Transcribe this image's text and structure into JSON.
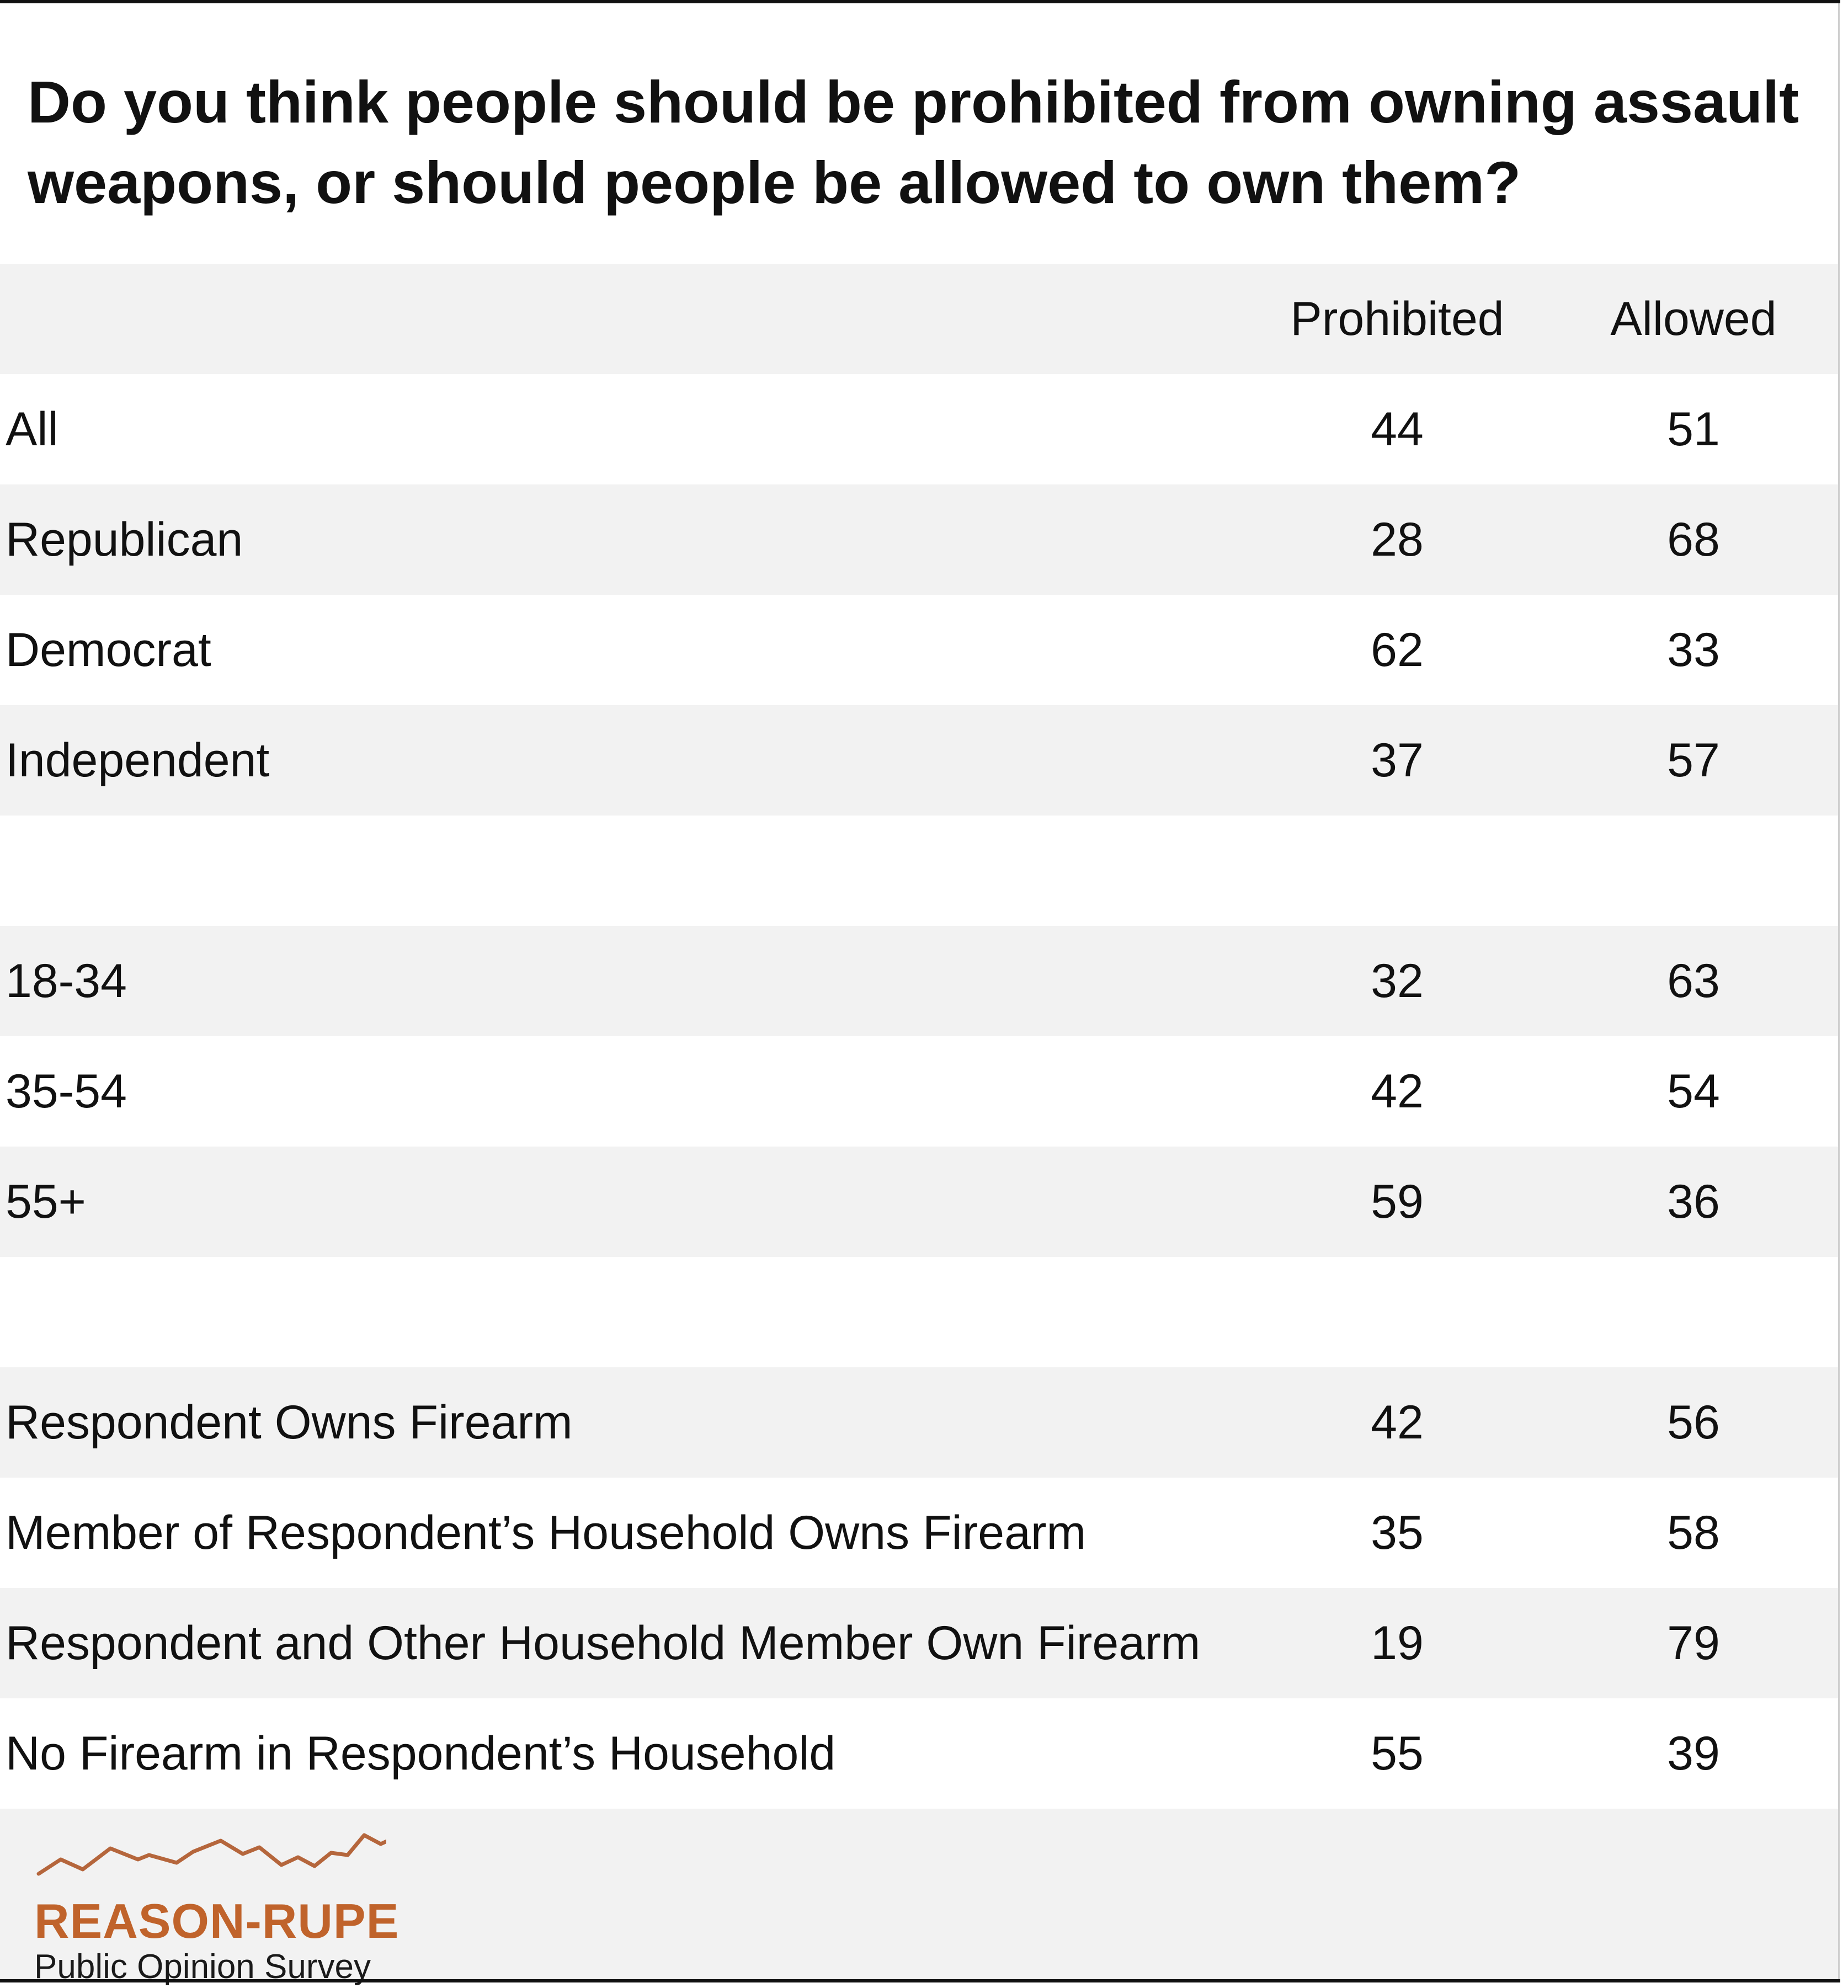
{
  "chart_data": {
    "type": "table",
    "title": "Do you think people should be prohibited from owning assault weapons, or should people be allowed to own them?",
    "columns": [
      "Prohibited",
      "Allowed"
    ],
    "rows": [
      {
        "label": "All",
        "values": [
          "44",
          "51"
        ]
      },
      {
        "label": "Republican",
        "values": [
          "28",
          "68"
        ]
      },
      {
        "label": "Democrat",
        "values": [
          "62",
          "33"
        ]
      },
      {
        "label": "Independent",
        "values": [
          "37",
          "57"
        ]
      },
      {
        "label": "",
        "values": [
          "",
          ""
        ]
      },
      {
        "label": "18-34",
        "values": [
          "32",
          "63"
        ]
      },
      {
        "label": "35-54",
        "values": [
          "42",
          "54"
        ]
      },
      {
        "label": "55+",
        "values": [
          "59",
          "36"
        ]
      },
      {
        "label": "",
        "values": [
          "",
          ""
        ]
      },
      {
        "label": "Respondent Owns Firearm",
        "values": [
          "42",
          "56"
        ]
      },
      {
        "label": "Member of Respondent’s Household Owns Firearm",
        "values": [
          "35",
          "58"
        ]
      },
      {
        "label": "Respondent and Other Household Member Own Firearm",
        "values": [
          "19",
          "79"
        ]
      },
      {
        "label": "No Firearm in Respondent’s Household",
        "values": [
          "55",
          "39"
        ]
      }
    ]
  },
  "logo": {
    "brand": "REASON-RUPE",
    "subtitle": "Public Opinion Survey",
    "brand_color": "#c0632b",
    "line_color": "#b5663c"
  }
}
